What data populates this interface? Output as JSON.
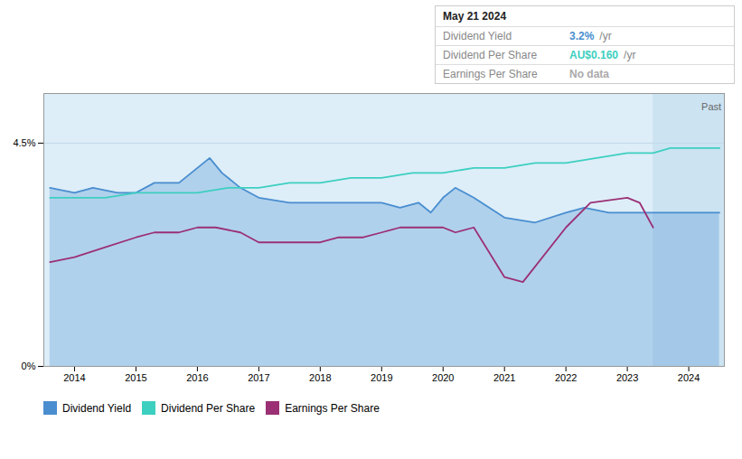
{
  "chart_data": {
    "type": "line",
    "xlim": [
      2013.5,
      2024.58
    ],
    "xticks": [
      2014,
      2015,
      2016,
      2017,
      2018,
      2019,
      2020,
      2021,
      2022,
      2023,
      2024
    ],
    "ylim": [
      0,
      0.055
    ],
    "yticks": [
      {
        "value": 0,
        "label": "0%"
      },
      {
        "value": 0.045,
        "label": "4.5%"
      }
    ],
    "grid": true,
    "legend": "bottom",
    "spans": [
      {
        "x": [
          2023.42,
          2024.58
        ],
        "color": "#cce3f2"
      }
    ],
    "annotations": [
      {
        "text": "Past",
        "x": 2024.53,
        "y": 0.053
      }
    ],
    "tooltip": {
      "title": "May 21 2024",
      "rows": [
        {
          "label": "Dividend Yield",
          "value": "3.2%",
          "unit": "/yr",
          "color": "#4a8ed0"
        },
        {
          "label": "Dividend Per Share",
          "value": "AU$0.160",
          "unit": "/yr",
          "color": "#3dcfc0"
        },
        {
          "label": "Earnings Per Share",
          "value": "No data",
          "color": "#aaaaaa"
        }
      ]
    },
    "series": [
      {
        "name": "Dividend Yield",
        "color": "#4a8ed0",
        "type": "area",
        "x": [
          2013.6,
          2014.0,
          2014.3,
          2014.7,
          2015.0,
          2015.3,
          2015.7,
          2016.0,
          2016.2,
          2016.4,
          2016.7,
          2017.0,
          2017.5,
          2018.0,
          2018.3,
          2018.6,
          2019.0,
          2019.3,
          2019.6,
          2019.8,
          2020.0,
          2020.2,
          2020.5,
          2021.0,
          2021.5,
          2022.0,
          2022.3,
          2022.7,
          2023.0,
          2023.2,
          2023.42,
          2023.7,
          2024.0,
          2024.3,
          2024.5
        ],
        "values": [
          0.036,
          0.035,
          0.036,
          0.035,
          0.035,
          0.037,
          0.037,
          0.04,
          0.042,
          0.039,
          0.036,
          0.034,
          0.033,
          0.033,
          0.033,
          0.033,
          0.033,
          0.032,
          0.033,
          0.031,
          0.034,
          0.036,
          0.034,
          0.03,
          0.029,
          0.031,
          0.032,
          0.031,
          0.031,
          0.031,
          0.031,
          0.031,
          0.031,
          0.031,
          0.031
        ]
      },
      {
        "name": "Dividend Per Share",
        "color": "#3dcfc0",
        "type": "line",
        "x": [
          2013.6,
          2014.0,
          2014.5,
          2015.0,
          2015.5,
          2016.0,
          2016.5,
          2017.0,
          2017.5,
          2018.0,
          2018.5,
          2019.0,
          2019.5,
          2019.8,
          2020.0,
          2020.5,
          2021.0,
          2021.5,
          2022.0,
          2022.5,
          2023.0,
          2023.2,
          2023.42,
          2023.7,
          2024.0,
          2024.3,
          2024.5
        ],
        "values": [
          0.034,
          0.034,
          0.034,
          0.035,
          0.035,
          0.035,
          0.036,
          0.036,
          0.037,
          0.037,
          0.038,
          0.038,
          0.039,
          0.039,
          0.039,
          0.04,
          0.04,
          0.041,
          0.041,
          0.042,
          0.043,
          0.043,
          0.043,
          0.044,
          0.044,
          0.044,
          0.044
        ]
      },
      {
        "name": "Earnings Per Share",
        "color": "#9b3075",
        "type": "line",
        "x": [
          2013.6,
          2014.0,
          2014.5,
          2015.0,
          2015.3,
          2015.7,
          2016.0,
          2016.3,
          2016.7,
          2017.0,
          2017.5,
          2018.0,
          2018.3,
          2018.7,
          2019.0,
          2019.3,
          2019.6,
          2020.0,
          2020.2,
          2020.5,
          2021.0,
          2021.3,
          2022.0,
          2022.4,
          2023.0,
          2023.2,
          2023.42
        ],
        "values": [
          0.021,
          0.022,
          0.024,
          0.026,
          0.027,
          0.027,
          0.028,
          0.028,
          0.027,
          0.025,
          0.025,
          0.025,
          0.026,
          0.026,
          0.027,
          0.028,
          0.028,
          0.028,
          0.027,
          0.028,
          0.018,
          0.017,
          0.028,
          0.033,
          0.034,
          0.033,
          0.028
        ]
      }
    ]
  }
}
